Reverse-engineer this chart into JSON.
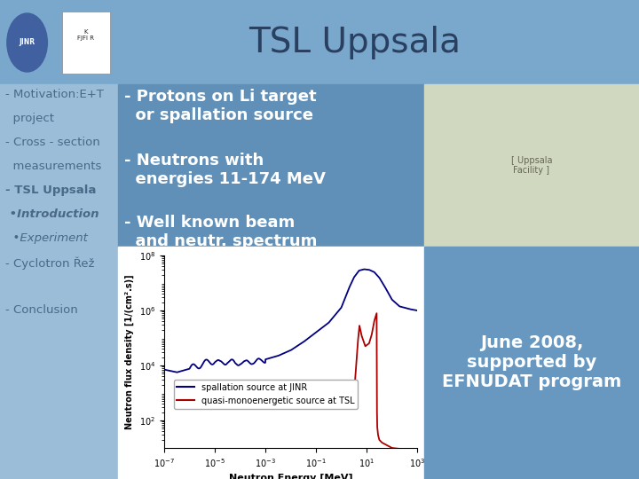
{
  "title": "TSL Uppsala",
  "bg_header": "#7aa8cc",
  "bg_left": "#9bbdd8",
  "bg_content": "#6090b8",
  "bg_june": "#6898c0",
  "bg_right_img": "#d0d8c0",
  "title_color": "#2a4060",
  "menu_color": "#4a6888",
  "bullet_color": "#ffffff",
  "left_menu": [
    [
      "- Motivation:E+T",
      false,
      false
    ],
    [
      "  project",
      false,
      false
    ],
    [
      "- Cross - section",
      false,
      false
    ],
    [
      "  measurements",
      false,
      false
    ],
    [
      "- TSL Uppsala",
      true,
      false
    ],
    [
      " •Introduction",
      true,
      true
    ],
    [
      "  •Experiment",
      false,
      true
    ],
    [
      "- Cyclotron Řež",
      false,
      false
    ],
    [
      "",
      false,
      false
    ],
    [
      "- Conclusion",
      false,
      false
    ]
  ],
  "bullets": [
    "- Protons on Li target\n  or spallation source",
    "- Neutrons with\n  energies 11-174 MeV",
    "- Well known beam\n  and neutr. spectrum"
  ],
  "june_text": "June 2008,\nsupported by\nEFNUDAT program",
  "legend1": "spallation source at JINR",
  "legend2": "quasi-monoenergetic source at TSL",
  "ylabel": "Neutron flux density [1/(cm².s)]",
  "xlabel": "Neutron Energy [MeV]",
  "color_spall": "#000080",
  "color_quasi": "#aa0000",
  "xlim_low": -7,
  "xlim_high": 3,
  "ylim_low": 1,
  "ylim_high": 8
}
